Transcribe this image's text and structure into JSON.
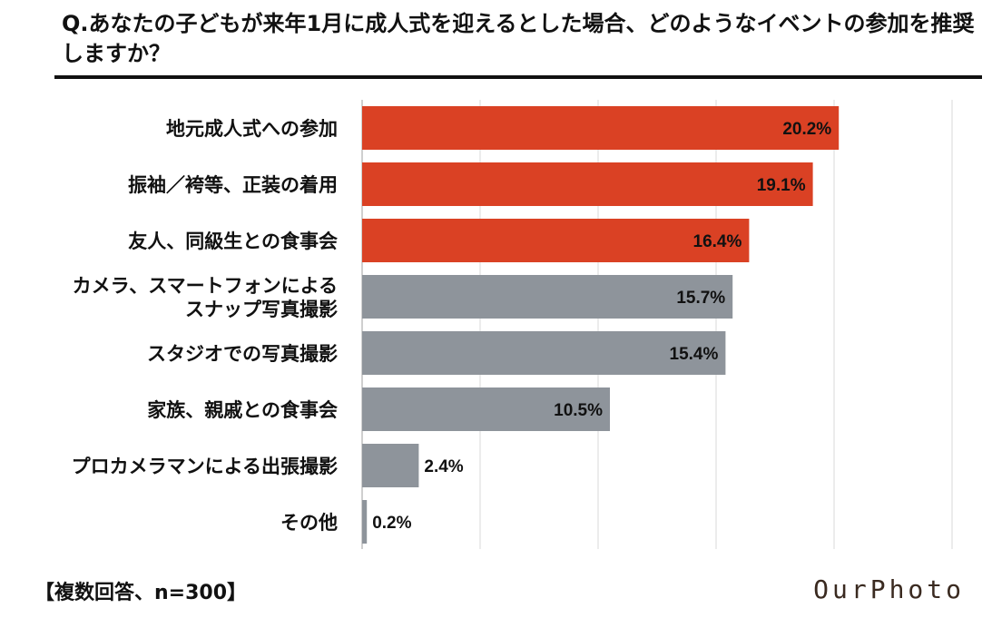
{
  "title": "Q.あなたの子どもが来年1月に成人式を迎えるとした場合、どのようなイベントの参加を推奨しますか？",
  "footnote": "【複数回答、n=300】",
  "logo": "OurPhoto",
  "colors": {
    "highlight": "#da4124",
    "normal": "#8e949b",
    "grid": "#d9d9d9",
    "axis": "#bfbfbf"
  },
  "chart_data": {
    "type": "bar",
    "orientation": "horizontal",
    "categories": [
      "地元成人式への参加",
      "振袖／袴等、正装の着用",
      "友人、同級生との食事会",
      "カメラ、スマートフォンによる\nスナップ写真撮影",
      "スタジオでの写真撮影",
      "家族、親戚との食事会",
      "プロカメラマンによる出張撮影",
      "その他"
    ],
    "values": [
      20.2,
      19.1,
      16.4,
      15.7,
      15.4,
      10.5,
      2.4,
      0.2
    ],
    "value_labels": [
      "20.2%",
      "19.1%",
      "16.4%",
      "15.7%",
      "15.4%",
      "10.5%",
      "2.4%",
      "0.2%"
    ],
    "highlighted": [
      true,
      true,
      true,
      false,
      false,
      false,
      false,
      false
    ],
    "xlim": [
      0,
      25
    ],
    "gridlines": [
      0,
      5,
      10,
      15,
      20,
      25
    ],
    "grid": true
  }
}
